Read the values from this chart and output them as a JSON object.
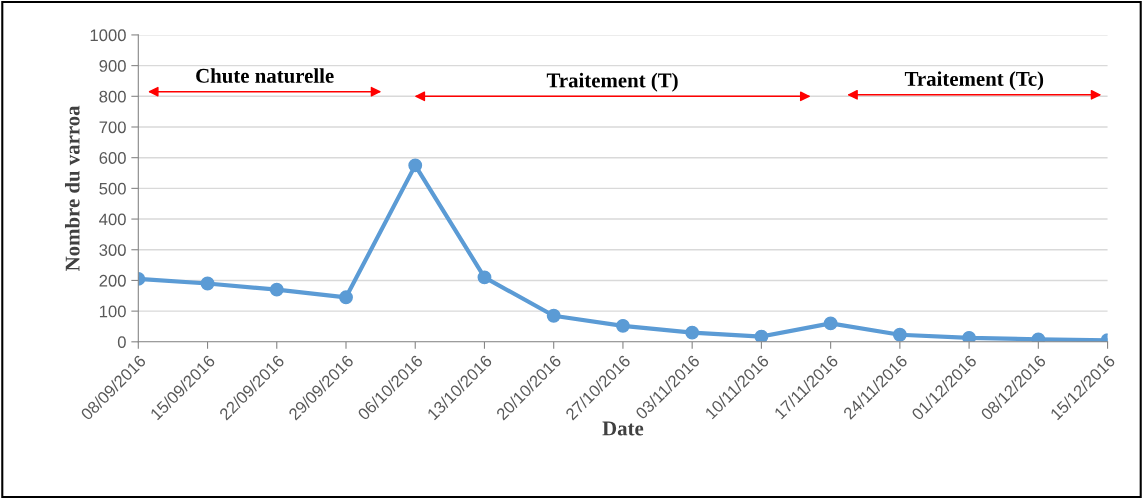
{
  "chart_data": {
    "type": "line",
    "xlabel": "Date",
    "ylabel": "Nombre du varroa",
    "categories": [
      "08/09/2016",
      "15/09/2016",
      "22/09/2016",
      "29/09/2016",
      "06/10/2016",
      "13/10/2016",
      "20/10/2016",
      "27/10/2016",
      "03/11/2016",
      "10/11/2016",
      "17/11/2016",
      "24/11/2016",
      "01/12/2016",
      "08/12/2016",
      "15/12/2016"
    ],
    "series": [
      {
        "color": "#5b9bd5",
        "values": [
          205,
          190,
          170,
          145,
          575,
          210,
          85,
          52,
          30,
          17,
          60,
          23,
          13,
          8,
          5
        ]
      }
    ],
    "ylim": [
      0,
      1000
    ],
    "yticks": [
      0,
      100,
      200,
      300,
      400,
      500,
      600,
      700,
      800,
      900,
      1000
    ],
    "grid": "y",
    "marker": "circle",
    "line_style": "solid",
    "annotations": [
      "Chute naturelle",
      "Traitement (T)",
      "Traitement (Tc)"
    ]
  }
}
